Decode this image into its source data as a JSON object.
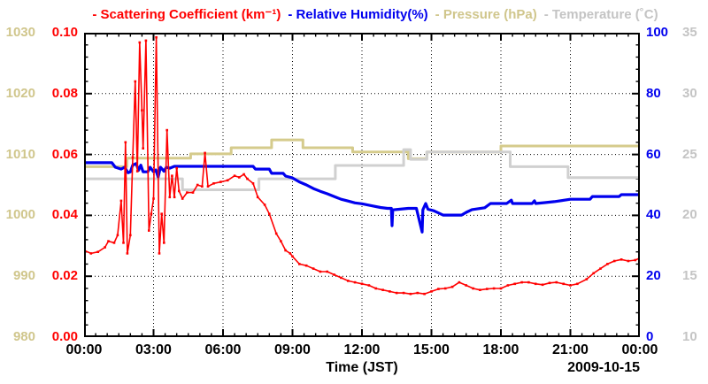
{
  "title_legend": {
    "dash": "-",
    "items": [
      {
        "id": "scattering",
        "label": "Scattering Coefficient (km⁻¹)",
        "color": "#ff0000"
      },
      {
        "id": "humidity",
        "label": "Relative Humidity(%)",
        "color": "#0000ee"
      },
      {
        "id": "pressure",
        "label": "Pressure (hPa)",
        "color": "#d0c68c"
      },
      {
        "id": "temperature",
        "label": "Temperature (˚C)",
        "color": "#c4c4c4"
      }
    ]
  },
  "axes": {
    "pressure": {
      "color": "#d0c68c",
      "ticks": [
        "1030",
        "1020",
        "1010",
        "1000",
        "990",
        "980"
      ]
    },
    "scattering": {
      "color": "#ff0000",
      "ticks": [
        "0.10",
        "0.08",
        "0.06",
        "0.04",
        "0.02",
        "0.00"
      ]
    },
    "humidity": {
      "color": "#0000ee",
      "ticks": [
        "100",
        "80",
        "60",
        "40",
        "20",
        "0"
      ]
    },
    "temperature": {
      "color": "#c4c4c4",
      "ticks": [
        "35",
        "30",
        "25",
        "20",
        "15",
        "10"
      ]
    },
    "x": {
      "label": "Time (JST)",
      "date": "2009-10-15",
      "ticks": [
        "00:00",
        "03:00",
        "06:00",
        "09:00",
        "12:00",
        "15:00",
        "18:00",
        "21:00",
        "00:00"
      ]
    }
  },
  "chart_data": {
    "type": "line",
    "title": "",
    "xlabel": "Time (JST)",
    "date": "2009-10-15",
    "x_range_hours": [
      0,
      24
    ],
    "x_major_step_hours": 3,
    "x_minor_step_hours": 0.5,
    "grid": "dotted-at-majors",
    "series": [
      {
        "name": "Pressure (hPa)",
        "color": "#d5cb8c",
        "width": 3,
        "style": "step",
        "scale": {
          "min": 980,
          "max": 1030
        },
        "points": [
          [
            0,
            1008.0
          ],
          [
            1.85,
            1008.0
          ],
          [
            1.85,
            1009.4
          ],
          [
            4.6,
            1009.4
          ],
          [
            4.6,
            1010.1
          ],
          [
            6.35,
            1010.1
          ],
          [
            6.35,
            1011.1
          ],
          [
            8.1,
            1011.1
          ],
          [
            8.1,
            1012.4
          ],
          [
            9.45,
            1012.4
          ],
          [
            9.45,
            1011.1
          ],
          [
            11.6,
            1011.1
          ],
          [
            11.6,
            1010.4
          ],
          [
            14.0,
            1010.4
          ],
          [
            14.0,
            1009.3
          ],
          [
            14.8,
            1009.3
          ],
          [
            14.8,
            1010.4
          ],
          [
            18.0,
            1010.4
          ],
          [
            18.0,
            1011.4
          ],
          [
            24,
            1011.4
          ]
        ]
      },
      {
        "name": "Temperature (˚C)",
        "color": "#d0d0d0",
        "width": 3,
        "style": "step",
        "scale": {
          "min": 10,
          "max": 35
        },
        "points": [
          [
            0,
            23.0
          ],
          [
            4.25,
            23.0
          ],
          [
            4.25,
            22.1
          ],
          [
            7.55,
            22.1
          ],
          [
            7.55,
            23.0
          ],
          [
            10.85,
            23.0
          ],
          [
            10.85,
            24.1
          ],
          [
            13.8,
            24.1
          ],
          [
            13.8,
            25.4
          ],
          [
            14.1,
            25.4
          ],
          [
            14.1,
            24.6
          ],
          [
            14.8,
            24.6
          ],
          [
            14.8,
            25.2
          ],
          [
            18.4,
            25.2
          ],
          [
            18.4,
            24.0
          ],
          [
            20.9,
            24.0
          ],
          [
            20.9,
            23.1
          ],
          [
            24,
            23.1
          ]
        ]
      },
      {
        "name": "Relative Humidity(%)",
        "color": "#0000ee",
        "width": 3.2,
        "style": "line",
        "scale": {
          "min": 0,
          "max": 100
        },
        "points": [
          [
            0,
            57.3
          ],
          [
            1.2,
            57.3
          ],
          [
            1.35,
            55.8
          ],
          [
            1.6,
            55.2
          ],
          [
            1.75,
            55.8
          ],
          [
            1.9,
            54.0
          ],
          [
            2.0,
            54.3
          ],
          [
            2.1,
            56.5
          ],
          [
            2.25,
            57.0
          ],
          [
            2.35,
            54.8
          ],
          [
            2.45,
            56.5
          ],
          [
            2.55,
            54.3
          ],
          [
            2.75,
            54.3
          ],
          [
            2.85,
            55.8
          ],
          [
            3.0,
            54.3
          ],
          [
            3.1,
            54.9
          ],
          [
            3.2,
            52.6
          ],
          [
            3.3,
            55.8
          ],
          [
            3.45,
            54.5
          ],
          [
            3.55,
            55.8
          ],
          [
            3.7,
            55.5
          ],
          [
            3.9,
            56.1
          ],
          [
            7.3,
            56.1
          ],
          [
            7.4,
            55.2
          ],
          [
            8.0,
            55.2
          ],
          [
            8.1,
            53.8
          ],
          [
            8.6,
            53.8
          ],
          [
            8.7,
            52.9
          ],
          [
            9.0,
            52.3
          ],
          [
            9.3,
            51.0
          ],
          [
            9.6,
            50.0
          ],
          [
            9.9,
            48.8
          ],
          [
            10.2,
            47.9
          ],
          [
            10.5,
            47.1
          ],
          [
            10.8,
            46.2
          ],
          [
            11.1,
            45.3
          ],
          [
            11.4,
            44.7
          ],
          [
            11.7,
            44.1
          ],
          [
            12.0,
            43.8
          ],
          [
            12.4,
            43.2
          ],
          [
            12.8,
            42.6
          ],
          [
            13.1,
            42.3
          ],
          [
            13.27,
            42.3
          ],
          [
            13.3,
            36.6
          ],
          [
            13.33,
            41.8
          ],
          [
            13.6,
            42.0
          ],
          [
            14.0,
            42.3
          ],
          [
            14.35,
            42.3
          ],
          [
            14.6,
            34.5
          ],
          [
            14.63,
            41.8
          ],
          [
            14.75,
            43.9
          ],
          [
            14.85,
            42.0
          ],
          [
            15.1,
            41.5
          ],
          [
            15.5,
            40.1
          ],
          [
            16.3,
            40.1
          ],
          [
            16.5,
            41.0
          ],
          [
            16.75,
            41.9
          ],
          [
            17.3,
            42.5
          ],
          [
            17.55,
            43.9
          ],
          [
            18.25,
            43.9
          ],
          [
            18.45,
            45.0
          ],
          [
            18.5,
            43.9
          ],
          [
            19.35,
            43.9
          ],
          [
            19.45,
            44.8
          ],
          [
            19.5,
            43.9
          ],
          [
            19.9,
            44.2
          ],
          [
            20.3,
            44.5
          ],
          [
            21.0,
            45.3
          ],
          [
            21.85,
            45.3
          ],
          [
            21.95,
            46.2
          ],
          [
            23.1,
            46.2
          ],
          [
            23.2,
            46.8
          ],
          [
            24,
            46.8
          ]
        ]
      },
      {
        "name": "Scattering Coefficient (km⁻¹)",
        "color": "#ff0000",
        "width": 1.6,
        "style": "line",
        "markers": true,
        "scale": {
          "min": 0,
          "max": 0.1
        },
        "points": [
          [
            0,
            0.0285
          ],
          [
            0.3,
            0.0275
          ],
          [
            0.6,
            0.028
          ],
          [
            0.9,
            0.0295
          ],
          [
            1.05,
            0.0315
          ],
          [
            1.3,
            0.031
          ],
          [
            1.45,
            0.0335
          ],
          [
            1.6,
            0.0448
          ],
          [
            1.7,
            0.031
          ],
          [
            1.79,
            0.064
          ],
          [
            1.87,
            0.0275
          ],
          [
            2.0,
            0.0335
          ],
          [
            2.1,
            0.059
          ],
          [
            2.21,
            0.084
          ],
          [
            2.3,
            0.0545
          ],
          [
            2.4,
            0.0968
          ],
          [
            2.5,
            0.0745
          ],
          [
            2.55,
            0.062
          ],
          [
            2.67,
            0.0974
          ],
          [
            2.8,
            0.035
          ],
          [
            2.9,
            0.0405
          ],
          [
            3.0,
            0.0455
          ],
          [
            3.12,
            0.0985
          ],
          [
            3.25,
            0.0275
          ],
          [
            3.35,
            0.0405
          ],
          [
            3.45,
            0.031
          ],
          [
            3.58,
            0.068
          ],
          [
            3.7,
            0.046
          ],
          [
            3.8,
            0.053
          ],
          [
            3.9,
            0.046
          ],
          [
            4.0,
            0.0555
          ],
          [
            4.1,
            0.048
          ],
          [
            4.25,
            0.0455
          ],
          [
            4.45,
            0.0475
          ],
          [
            4.7,
            0.0475
          ],
          [
            4.9,
            0.05
          ],
          [
            5.1,
            0.0495
          ],
          [
            5.22,
            0.0605
          ],
          [
            5.35,
            0.0495
          ],
          [
            5.6,
            0.0505
          ],
          [
            5.9,
            0.051
          ],
          [
            6.2,
            0.0515
          ],
          [
            6.5,
            0.053
          ],
          [
            6.7,
            0.0525
          ],
          [
            6.9,
            0.0535
          ],
          [
            7.05,
            0.052
          ],
          [
            7.3,
            0.0505
          ],
          [
            7.5,
            0.046
          ],
          [
            7.8,
            0.0435
          ],
          [
            8.0,
            0.0405
          ],
          [
            8.3,
            0.034
          ],
          [
            8.5,
            0.0315
          ],
          [
            8.7,
            0.0285
          ],
          [
            8.9,
            0.0275
          ],
          [
            9.0,
            0.0265
          ],
          [
            9.3,
            0.024
          ],
          [
            9.6,
            0.0235
          ],
          [
            9.9,
            0.0225
          ],
          [
            10.2,
            0.0215
          ],
          [
            10.5,
            0.0215
          ],
          [
            10.8,
            0.0205
          ],
          [
            11.1,
            0.0195
          ],
          [
            11.4,
            0.0185
          ],
          [
            11.7,
            0.018
          ],
          [
            12.0,
            0.0175
          ],
          [
            12.3,
            0.017
          ],
          [
            12.6,
            0.016
          ],
          [
            12.9,
            0.0155
          ],
          [
            13.2,
            0.015
          ],
          [
            13.5,
            0.0145
          ],
          [
            13.8,
            0.0145
          ],
          [
            14.1,
            0.0142
          ],
          [
            14.4,
            0.0145
          ],
          [
            14.7,
            0.0142
          ],
          [
            15.0,
            0.015
          ],
          [
            15.3,
            0.0158
          ],
          [
            15.6,
            0.016
          ],
          [
            15.9,
            0.0165
          ],
          [
            16.2,
            0.018
          ],
          [
            16.5,
            0.017
          ],
          [
            16.8,
            0.016
          ],
          [
            17.1,
            0.0155
          ],
          [
            17.4,
            0.0158
          ],
          [
            17.7,
            0.016
          ],
          [
            18.0,
            0.016
          ],
          [
            18.3,
            0.017
          ],
          [
            18.6,
            0.0175
          ],
          [
            18.9,
            0.018
          ],
          [
            19.2,
            0.018
          ],
          [
            19.5,
            0.0175
          ],
          [
            19.8,
            0.0172
          ],
          [
            20.1,
            0.0178
          ],
          [
            20.4,
            0.018
          ],
          [
            20.7,
            0.0175
          ],
          [
            21.0,
            0.017
          ],
          [
            21.3,
            0.0175
          ],
          [
            21.7,
            0.019
          ],
          [
            22.0,
            0.021
          ],
          [
            22.3,
            0.0225
          ],
          [
            22.6,
            0.024
          ],
          [
            22.9,
            0.025
          ],
          [
            23.2,
            0.0255
          ],
          [
            23.5,
            0.025
          ],
          [
            23.8,
            0.0253
          ],
          [
            24.0,
            0.026
          ]
        ]
      }
    ]
  }
}
